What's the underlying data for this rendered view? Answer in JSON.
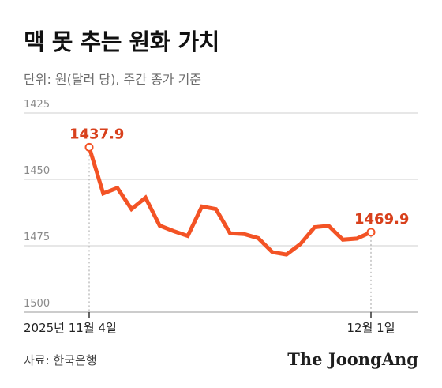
{
  "title": "맥 못 추는 원화 가치",
  "subtitle": "단위: 원(달러 당), 주간 종가 기준",
  "source": "자료: 한국은행",
  "logo": "The JoongAng",
  "colors": {
    "line": "#f35325",
    "label": "#d8401c",
    "grid": "#cfcfcf",
    "axis_text": "#8a8a8a"
  },
  "chart_data": {
    "type": "line",
    "title": "맥 못 추는 원화 가치",
    "subtitle": "단위: 원(달러 당), 주간 종가 기준",
    "y_inverted": true,
    "ylim": [
      1425,
      1500
    ],
    "yticks": [
      1425,
      1450,
      1475,
      1500
    ],
    "ytick_labels": [
      "1425",
      "1450",
      "1475",
      "1500"
    ],
    "grid": true,
    "x_tick_labels": [
      {
        "index": 0,
        "label": "2025년 11월 4일"
      },
      {
        "index": 20,
        "label": "12월 1일"
      }
    ],
    "series": [
      {
        "values": [
          1437.9,
          1455.3,
          1453.2,
          1461.2,
          1456.9,
          1467.4,
          1469.5,
          1471.3,
          1460.2,
          1461.2,
          1470.3,
          1470.6,
          1472.1,
          1477.4,
          1478.3,
          1474.3,
          1468.0,
          1467.5,
          1472.7,
          1472.3,
          1469.9
        ]
      }
    ],
    "annotations": [
      {
        "index": 0,
        "label": "1437.9"
      },
      {
        "index": 20,
        "label": "1469.9"
      }
    ]
  }
}
